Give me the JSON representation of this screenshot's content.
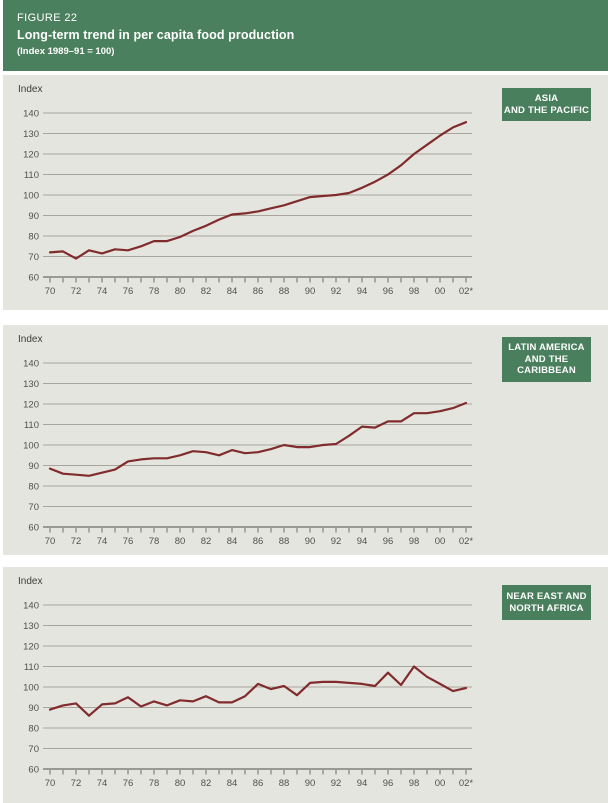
{
  "header": {
    "figure_label": "FIGURE 22",
    "title": "Long-term trend in per capita food production",
    "subtitle": "(Index 1989–91 = 100)"
  },
  "colors": {
    "header_green": "#4a805e",
    "region_box_green": "#4a7f5e",
    "panel_background": "#e5e5e0",
    "line": "#812c2c",
    "grid": "#a7a59d",
    "axis": "#6e6c65",
    "text": "#3f3d38"
  },
  "chart_data": [
    {
      "type": "line",
      "region_label": "ASIA\nAND THE PACIFIC",
      "ylabel": "Index",
      "ylim": [
        60,
        140
      ],
      "yticks": [
        140,
        130,
        120,
        110,
        100,
        90,
        80,
        70,
        60
      ],
      "xlim": [
        1970,
        2002
      ],
      "x_tick_labels": [
        "70",
        "72",
        "74",
        "76",
        "78",
        "80",
        "82",
        "84",
        "86",
        "88",
        "90",
        "92",
        "94",
        "96",
        "98",
        "00",
        "02*"
      ],
      "x_tick_step_years": 2,
      "grid": true,
      "series": [
        {
          "values": [
            72,
            72.5,
            69,
            73,
            71.5,
            73.5,
            73,
            75,
            77.5,
            77.5,
            79.5,
            82.5,
            85,
            88,
            90.5,
            91,
            92,
            93.5,
            95,
            97,
            99,
            99.5,
            100,
            101,
            103.5,
            106.5,
            110,
            114.5,
            120,
            124.5,
            129,
            133,
            135.5
          ]
        }
      ]
    },
    {
      "type": "line",
      "region_label": "LATIN AMERICA\nAND THE\nCARIBBEAN",
      "ylabel": "Index",
      "ylim": [
        60,
        140
      ],
      "yticks": [
        140,
        130,
        120,
        110,
        100,
        90,
        80,
        70,
        60
      ],
      "xlim": [
        1970,
        2002
      ],
      "x_tick_labels": [
        "70",
        "72",
        "74",
        "76",
        "78",
        "80",
        "82",
        "84",
        "86",
        "88",
        "90",
        "92",
        "94",
        "96",
        "98",
        "00",
        "02*"
      ],
      "x_tick_step_years": 2,
      "grid": true,
      "series": [
        {
          "values": [
            88.5,
            86,
            85.5,
            85,
            86.5,
            88,
            92,
            93,
            93.5,
            93.5,
            95,
            97,
            96.5,
            95,
            97.5,
            96,
            96.5,
            98,
            100,
            99,
            99,
            100,
            100.5,
            104.5,
            109,
            108.5,
            111.5,
            111.5,
            115.5,
            115.5,
            116.5,
            118,
            120.5
          ]
        }
      ]
    },
    {
      "type": "line",
      "region_label": "NEAR EAST AND\nNORTH AFRICA",
      "ylabel": "Index",
      "ylim": [
        60,
        140
      ],
      "yticks": [
        140,
        130,
        120,
        110,
        100,
        90,
        80,
        70,
        60
      ],
      "xlim": [
        1970,
        2002
      ],
      "x_tick_labels": [
        "70",
        "72",
        "74",
        "76",
        "78",
        "80",
        "82",
        "84",
        "86",
        "88",
        "90",
        "92",
        "94",
        "96",
        "98",
        "00",
        "02*"
      ],
      "x_tick_step_years": 2,
      "grid": true,
      "series": [
        {
          "values": [
            89,
            91,
            92,
            86,
            91.5,
            92,
            95,
            90.5,
            93,
            91,
            93.5,
            93,
            95.5,
            92.5,
            92.5,
            95.5,
            101.5,
            99,
            100.5,
            96,
            102,
            102.5,
            102.5,
            102,
            101.5,
            100.5,
            107,
            101,
            110,
            105,
            101.5,
            98,
            99.5
          ]
        }
      ]
    }
  ]
}
